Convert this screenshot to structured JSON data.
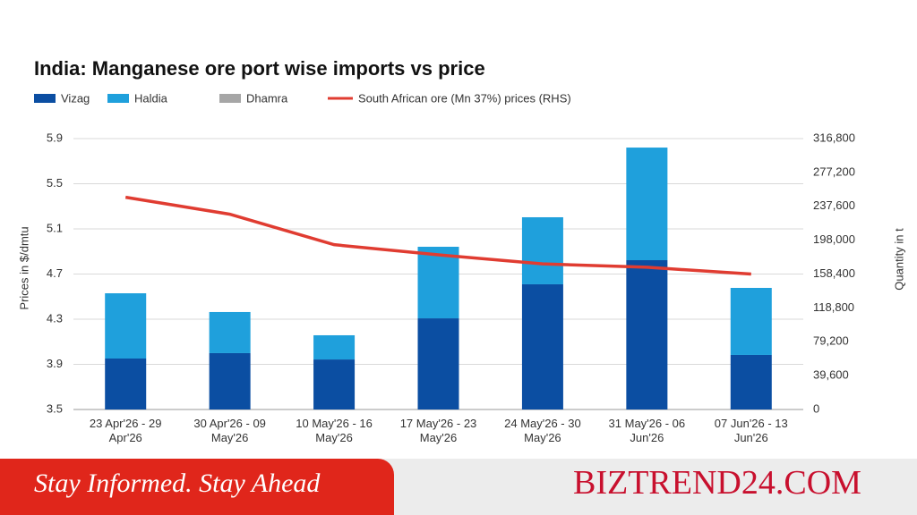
{
  "chart_data": {
    "type": "bar",
    "stacked": true,
    "title": "India: Manganese ore port wise imports vs price",
    "y_label": "Prices in $/dmtu",
    "y2_label": "Quantity in t",
    "categories": [
      "23 Apr'26 - 29\nApr'26",
      "30 Apr'26 - 09\nMay'26",
      "10 May'26 - 16\nMay'26",
      "17 May'26 - 23\nMay'26",
      "24 May'26 - 30\nMay'26",
      "31 May'26 - 06\nJun'26",
      "07 Jun'26 - 13\nJun'26"
    ],
    "series": [
      {
        "name": "Vizag",
        "color": "#0b4ea2",
        "axis": "y2",
        "values": [
          59600,
          65900,
          58500,
          106600,
          146400,
          174600,
          63800
        ]
      },
      {
        "name": "Haldia",
        "color": "#1fa0dc",
        "axis": "y2",
        "values": [
          76300,
          48100,
          28300,
          83700,
          78400,
          131700,
          78400
        ]
      },
      {
        "name": "Dhamra",
        "color": "#a6a6a6",
        "axis": "y2",
        "values": [
          0,
          0,
          0,
          0,
          0,
          0,
          0
        ]
      },
      {
        "name": "South African ore (Mn 37%) prices (RHS)",
        "color": "#e03c31",
        "type": "line",
        "values": [
          5.38,
          5.23,
          4.96,
          4.87,
          4.79,
          4.76,
          4.7
        ]
      }
    ],
    "ylim": [
      3.5,
      5.9
    ],
    "yticks": [
      3.5,
      3.9,
      4.3,
      4.7,
      5.1,
      5.5,
      5.9
    ],
    "y2lim": [
      0,
      316800
    ],
    "y2ticks": [
      0,
      {
        "value": 39600,
        "label": "39,600"
      },
      {
        "value": 79200,
        "label": "79,200"
      },
      {
        "value": 118800,
        "label": "118,800"
      },
      {
        "value": 158400,
        "label": "158,400"
      },
      {
        "value": 198000,
        "label": "198,000"
      },
      {
        "value": 237600,
        "label": "237,600"
      },
      {
        "value": 277200,
        "label": "277,200"
      },
      {
        "value": 316800,
        "label": "316,800"
      }
    ],
    "grid": true
  },
  "banner": {
    "tagline": "Stay Informed. Stay Ahead",
    "brand": "BIZTREND24.COM"
  }
}
